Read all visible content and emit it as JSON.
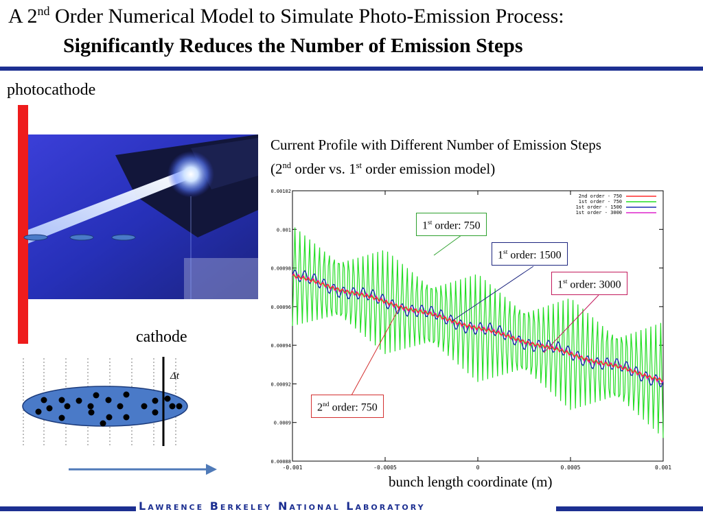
{
  "slide": {
    "title_line1_prefix": "A 2",
    "title_line1_sup": "nd",
    "title_line1_suffix": " Order Numerical Model to Simulate Photo-Emission Process:",
    "title_line2": "Significantly Reduces the Number of Emission Steps",
    "footer": "Lawrence Berkeley National Laboratory",
    "brand_color": "#1c2f91"
  },
  "left_panel": {
    "photocathode_label": "photocathode",
    "cathode_label": "cathode",
    "delta_t_label": "Δt"
  },
  "caption": {
    "line1": "Current Profile with Different Number of Emission Steps",
    "line2_a": "(2",
    "line2_sup1": "nd",
    "line2_b": " order vs. 1",
    "line2_sup2": "st",
    "line2_c": " order emission model)"
  },
  "annotations": {
    "first_750": {
      "pre": "1",
      "sup": "st",
      "post": " order: 750"
    },
    "first_1500": {
      "pre": "1",
      "sup": "st",
      "post": " order: 1500"
    },
    "first_3000": {
      "pre": "1",
      "sup": "st",
      "post": " order: 3000"
    },
    "second_750": {
      "pre": "2",
      "sup": "nd",
      "post": " order: 750"
    }
  },
  "chart_data": {
    "type": "line",
    "xlabel": "bunch length coordinate (m)",
    "ylabel": "",
    "xlim": [
      -0.001,
      0.001
    ],
    "ylim": [
      0.00088,
      0.00102
    ],
    "x_ticks": [
      -0.001,
      -0.0005,
      0,
      0.0005,
      0.001
    ],
    "x_tick_labels": [
      "-0.001",
      "-0.0005",
      "0",
      "0.0005",
      "0.001"
    ],
    "y_ticks": [
      0.00088,
      0.0009,
      0.00092,
      0.00094,
      0.00096,
      0.00098,
      0.001,
      0.00102
    ],
    "y_tick_labels": [
      "0.00088",
      "0.0009",
      "0.00092",
      "0.00094",
      "0.00096",
      "0.00098",
      "0.001",
      "0.00102"
    ],
    "legend_position": "top-right",
    "grid": false,
    "series": [
      {
        "name": "2nd order - 750",
        "color": "#ff2a2a",
        "trend": [
          0.000976,
          0.000922
        ],
        "ripple": 8e-07
      },
      {
        "name": "1st order - 750",
        "color": "#22dd22",
        "trend": [
          0.000976,
          0.000922
        ],
        "ripple_start": 2.6e-05,
        "ripple_end": 3e-05
      },
      {
        "name": "1st order - 1500",
        "color": "#1a2ab0",
        "trend": [
          0.000976,
          0.000922
        ],
        "ripple": 3e-06
      },
      {
        "name": "1st order - 3000",
        "color": "#dd22cc",
        "trend": [
          0.000976,
          0.000922
        ],
        "ripple": 1.2e-06
      }
    ]
  }
}
